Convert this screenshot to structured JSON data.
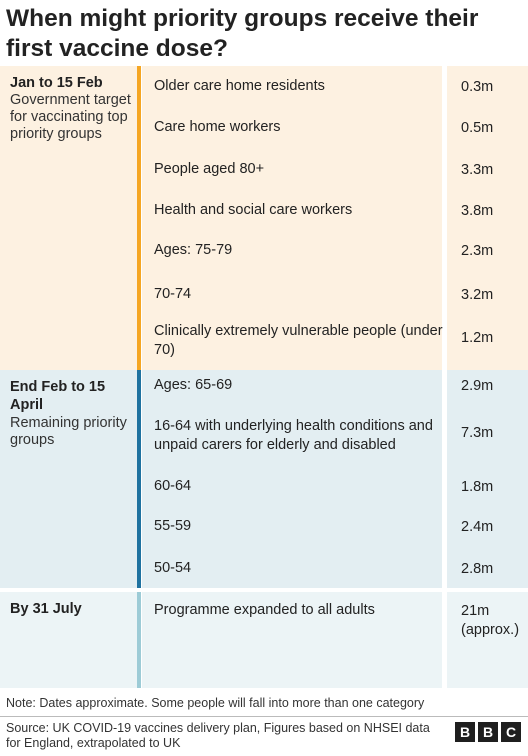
{
  "title": "When might priority groups receive their first vaccine dose?",
  "colors": {
    "phase1_bg": "#fdf1e1",
    "phase1_accent": "#f5a623",
    "phase2_bg": "#e3eef2",
    "phase2_accent": "#1f72a0",
    "phase3_bg": "#ecf4f6",
    "phase3_accent": "#9dcbd6"
  },
  "chart_data": {
    "type": "table",
    "title": "When might priority groups receive their first vaccine dose?",
    "phases": [
      {
        "period": "Jan to 15 Feb",
        "description": "Government target for vaccinating top priority groups",
        "groups": [
          {
            "label": "Older care home residents",
            "value": "0.3m"
          },
          {
            "label": "Care home workers",
            "value": "0.5m"
          },
          {
            "label": "People aged 80+",
            "value": "3.3m"
          },
          {
            "label": "Health and social care workers",
            "value": "3.8m"
          },
          {
            "label": "Ages: 75-79",
            "value": "2.3m"
          },
          {
            "label": "70-74",
            "value": "3.2m"
          },
          {
            "label": "Clinically extremely vulnerable people (under 70)",
            "value": "1.2m"
          }
        ]
      },
      {
        "period": "End Feb to 15 April",
        "description": "Remaining priority groups",
        "groups": [
          {
            "label": "Ages: 65-69",
            "value": "2.9m"
          },
          {
            "label": "16-64 with underlying health conditions and unpaid carers for elderly and disabled",
            "value": "7.3m"
          },
          {
            "label": "60-64",
            "value": "1.8m"
          },
          {
            "label": "55-59",
            "value": "2.4m"
          },
          {
            "label": "50-54",
            "value": "2.8m"
          }
        ]
      },
      {
        "period": "By 31 July",
        "description": "",
        "groups": [
          {
            "label": "Programme expanded to all adults",
            "value": "21m (approx.)"
          }
        ]
      }
    ]
  },
  "note": "Note: Dates approximate. Some people will fall into more than one category",
  "source": "Source: UK COVID-19 vaccines delivery plan, Figures based on NHSEI data for England, extrapolated to UK",
  "logo": {
    "letters": [
      "B",
      "B",
      "C"
    ]
  }
}
